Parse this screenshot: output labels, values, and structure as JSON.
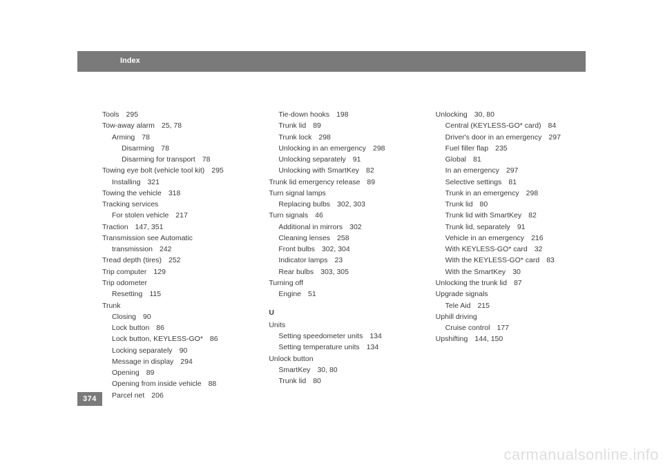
{
  "header": {
    "title": "Index"
  },
  "page_number": "374",
  "watermark": "carmanualsonline.info",
  "columns": {
    "col1": [
      {
        "text": "Tools",
        "pages": "295",
        "indent": 0
      },
      {
        "text": "Tow-away alarm",
        "pages": "25, 78",
        "indent": 0
      },
      {
        "text": "Arming",
        "pages": "78",
        "indent": 1
      },
      {
        "text": "Disarming",
        "pages": "78",
        "indent": 2
      },
      {
        "text": "Disarming for transport",
        "pages": "78",
        "indent": 2
      },
      {
        "text": "Towing eye bolt (vehicle tool kit)",
        "pages": "295",
        "indent": 0
      },
      {
        "text": "Installing",
        "pages": "321",
        "indent": 1
      },
      {
        "text": "Towing the vehicle",
        "pages": "318",
        "indent": 0
      },
      {
        "text": "Tracking services",
        "pages": "",
        "indent": 0
      },
      {
        "text": "For stolen vehicle",
        "pages": "217",
        "indent": 1
      },
      {
        "text": "Traction",
        "pages": "147, 351",
        "indent": 0
      },
      {
        "text": "Transmission see Automatic",
        "pages": "",
        "indent": 0
      },
      {
        "text": "transmission",
        "pages": "242",
        "indent": 1
      },
      {
        "text": "Tread depth (tires)",
        "pages": "252",
        "indent": 0
      },
      {
        "text": "Trip computer",
        "pages": "129",
        "indent": 0
      },
      {
        "text": "Trip odometer",
        "pages": "",
        "indent": 0
      },
      {
        "text": "Resetting",
        "pages": "115",
        "indent": 1
      },
      {
        "text": "Trunk",
        "pages": "",
        "indent": 0
      },
      {
        "text": "Closing",
        "pages": "90",
        "indent": 1
      },
      {
        "text": "Lock button",
        "pages": "86",
        "indent": 1
      },
      {
        "text": "Lock button, KEYLESS-GO*",
        "pages": "86",
        "indent": 1
      },
      {
        "text": "Locking separately",
        "pages": "90",
        "indent": 1
      },
      {
        "text": "Message in display",
        "pages": "294",
        "indent": 1
      },
      {
        "text": "Opening",
        "pages": "89",
        "indent": 1
      },
      {
        "text": "Opening from inside vehicle",
        "pages": "88",
        "indent": 1
      },
      {
        "text": "Parcel net",
        "pages": "206",
        "indent": 1
      }
    ],
    "col2": [
      {
        "text": "Tie-down hooks",
        "pages": "198",
        "indent": 1
      },
      {
        "text": "Trunk lid",
        "pages": "89",
        "indent": 1
      },
      {
        "text": "Trunk lock",
        "pages": "298",
        "indent": 1
      },
      {
        "text": "Unlocking in an emergency",
        "pages": "298",
        "indent": 1
      },
      {
        "text": "Unlocking separately",
        "pages": "91",
        "indent": 1
      },
      {
        "text": "Unlocking with SmartKey",
        "pages": "82",
        "indent": 1
      },
      {
        "text": "Trunk lid emergency release",
        "pages": "89",
        "indent": 0
      },
      {
        "text": "Turn signal lamps",
        "pages": "",
        "indent": 0
      },
      {
        "text": "Replacing bulbs",
        "pages": "302, 303",
        "indent": 1
      },
      {
        "text": "Turn signals",
        "pages": "46",
        "indent": 0
      },
      {
        "text": "Additional in mirrors",
        "pages": "302",
        "indent": 1
      },
      {
        "text": "Cleaning lenses",
        "pages": "258",
        "indent": 1
      },
      {
        "text": "Front bulbs",
        "pages": "302, 304",
        "indent": 1
      },
      {
        "text": "Indicator lamps",
        "pages": "23",
        "indent": 1
      },
      {
        "text": "Rear bulbs",
        "pages": "303, 305",
        "indent": 1
      },
      {
        "text": "Turning off",
        "pages": "",
        "indent": 0
      },
      {
        "text": "Engine",
        "pages": "51",
        "indent": 1
      },
      {
        "section": "U"
      },
      {
        "text": "Units",
        "pages": "",
        "indent": 0
      },
      {
        "text": "Setting speedometer units",
        "pages": "134",
        "indent": 1
      },
      {
        "text": "Setting temperature units",
        "pages": "134",
        "indent": 1
      },
      {
        "text": "Unlock button",
        "pages": "",
        "indent": 0
      },
      {
        "text": "SmartKey",
        "pages": "30, 80",
        "indent": 1
      },
      {
        "text": "Trunk lid",
        "pages": "80",
        "indent": 1
      }
    ],
    "col3": [
      {
        "text": "Unlocking",
        "pages": "30, 80",
        "indent": 0
      },
      {
        "text": "Central (KEYLESS-GO* card)",
        "pages": "84",
        "indent": 1
      },
      {
        "text": "Driver's door in an emergency",
        "pages": "297",
        "indent": 1
      },
      {
        "text": "Fuel filler flap",
        "pages": "235",
        "indent": 1
      },
      {
        "text": "Global",
        "pages": "81",
        "indent": 1
      },
      {
        "text": "In an emergency",
        "pages": "297",
        "indent": 1
      },
      {
        "text": "Selective settings",
        "pages": "81",
        "indent": 1
      },
      {
        "text": "Trunk in an emergency",
        "pages": "298",
        "indent": 1
      },
      {
        "text": "Trunk lid",
        "pages": "80",
        "indent": 1
      },
      {
        "text": "Trunk lid with SmartKey",
        "pages": "82",
        "indent": 1
      },
      {
        "text": "Trunk lid, separately",
        "pages": "91",
        "indent": 1
      },
      {
        "text": "Vehicle in an emergency",
        "pages": "216",
        "indent": 1
      },
      {
        "text": "With KEYLESS-GO* card",
        "pages": "32",
        "indent": 1
      },
      {
        "text": "With the KEYLESS-GO* card",
        "pages": "83",
        "indent": 1
      },
      {
        "text": "With the SmartKey",
        "pages": "30",
        "indent": 1
      },
      {
        "text": "Unlocking the trunk lid",
        "pages": "87",
        "indent": 0
      },
      {
        "text": "Upgrade signals",
        "pages": "",
        "indent": 0
      },
      {
        "text": "Tele Aid",
        "pages": "215",
        "indent": 1
      },
      {
        "text": "Uphill driving",
        "pages": "",
        "indent": 0
      },
      {
        "text": "Cruise control",
        "pages": "177",
        "indent": 1
      },
      {
        "text": "Upshifting",
        "pages": "144, 150",
        "indent": 0
      }
    ]
  },
  "styling": {
    "text_color": "#3a3a3a",
    "header_bg": "#7a7a7a",
    "header_text_color": "#ffffff",
    "watermark_color": "#dedede",
    "body_font_size": 10.5,
    "header_font_size": 11,
    "page_bg": "#ffffff"
  }
}
